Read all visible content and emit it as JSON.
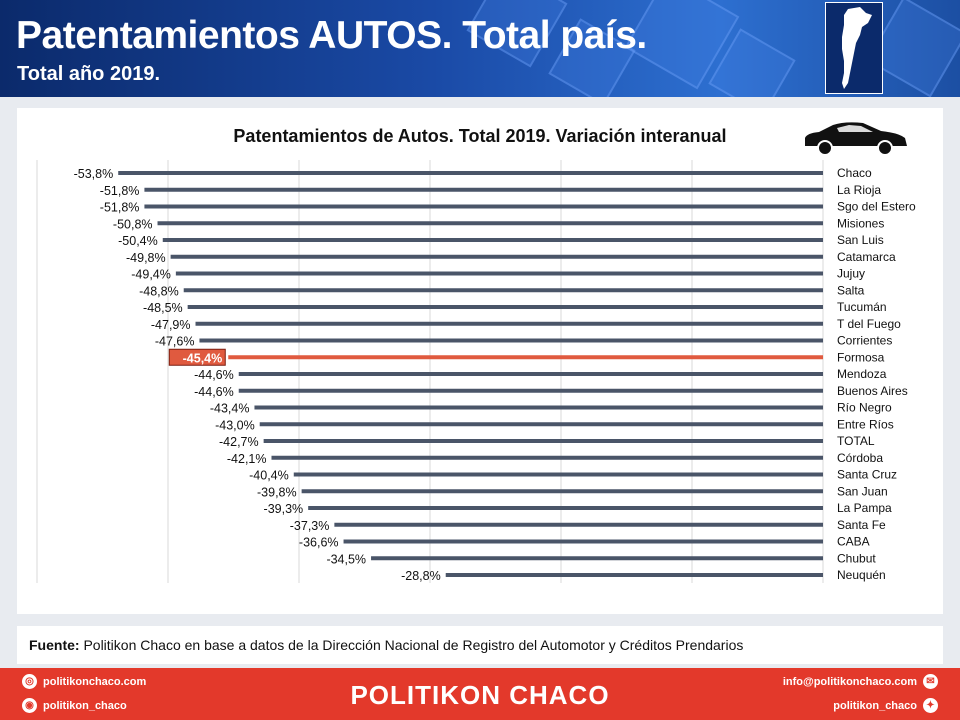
{
  "header": {
    "title": "Patentamientos AUTOS. Total país.",
    "subtitle": "Total año 2019."
  },
  "chart_data": {
    "type": "bar",
    "orientation": "horizontal",
    "title": "Patentamientos de Autos. Total 2019. Variación interanual",
    "xlim": [
      -60,
      0
    ],
    "grid": true,
    "highlight_color": "#e05a3f",
    "bar_color": "#4a5568",
    "categories": [
      "Chaco",
      "La Rioja",
      "Sgo del Estero",
      "Misiones",
      "San Luis",
      "Catamarca",
      "Jujuy",
      "Salta",
      "Tucumán",
      "T del Fuego",
      "Corrientes",
      "Formosa",
      "Mendoza",
      "Buenos Aires",
      "Río Negro",
      "Entre Ríos",
      "TOTAL",
      "Córdoba",
      "Santa Cruz",
      "San Juan",
      "La Pampa",
      "Santa Fe",
      "CABA",
      "Chubut",
      "Neuquén"
    ],
    "values": [
      -53.8,
      -51.8,
      -51.8,
      -50.8,
      -50.4,
      -49.8,
      -49.4,
      -48.8,
      -48.5,
      -47.9,
      -47.6,
      -45.4,
      -44.6,
      -44.6,
      -43.4,
      -43.0,
      -42.7,
      -42.1,
      -40.4,
      -39.8,
      -39.3,
      -37.3,
      -36.6,
      -34.5,
      -28.8
    ],
    "data_labels": [
      "-53,8%",
      "-51,8%",
      "-51,8%",
      "-50,8%",
      "-50,4%",
      "-49,8%",
      "-49,4%",
      "-48,8%",
      "-48,5%",
      "-47,9%",
      "-47,6%",
      "-45,4%",
      "-44,6%",
      "-44,6%",
      "-43,4%",
      "-43,0%",
      "-42,7%",
      "-42,1%",
      "-40,4%",
      "-39,8%",
      "-39,3%",
      "-37,3%",
      "-36,6%",
      "-34,5%",
      "-28,8%"
    ],
    "highlight": "Formosa"
  },
  "source": {
    "label": "Fuente:",
    "text": " Politikon Chaco en base a datos de la Dirección Nacional de Registro del Automotor  y Créditos Prendarios"
  },
  "footer": {
    "brand": "POLITIKON CHACO",
    "website": "politikonchaco.com",
    "instagram": "politikon_chaco",
    "email": "info@politikonchaco.com",
    "twitter": "politikon_chaco"
  }
}
